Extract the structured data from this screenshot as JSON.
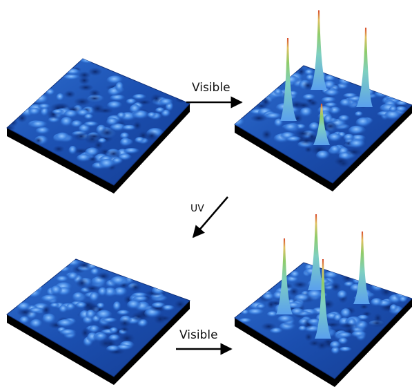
{
  "labels": {
    "top_arrow": "Visible",
    "uv_arrow": "UV",
    "bottom_arrow": "Visible"
  }
}
